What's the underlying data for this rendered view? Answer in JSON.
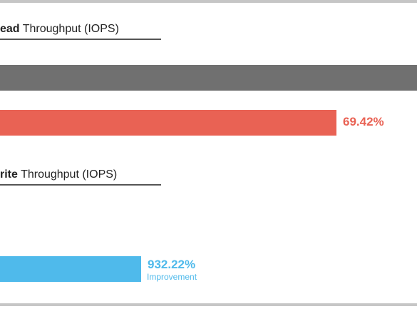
{
  "chart_data": [
    {
      "type": "bar",
      "orientation": "horizontal",
      "title_bold": "ead",
      "title_rest": " Throughput (IOPS)",
      "series": [
        {
          "color": "#707070",
          "value": null
        },
        {
          "color": "#e96254",
          "value": 69.42,
          "value_label": "69.42%"
        }
      ],
      "legend": "none",
      "grid": false
    },
    {
      "type": "bar",
      "orientation": "horizontal",
      "title_bold": "rite",
      "title_rest": " Throughput (IOPS)",
      "series": [
        {
          "color": "#4fbaeb",
          "value": 932.22,
          "value_label": "932.22%",
          "sub_label": "Improvement"
        }
      ],
      "legend": "none",
      "grid": false
    }
  ]
}
